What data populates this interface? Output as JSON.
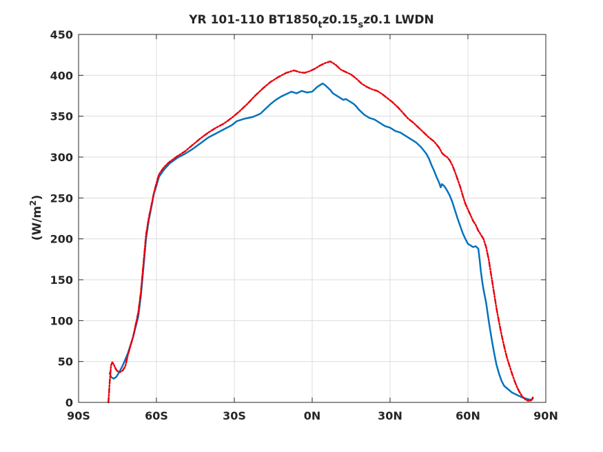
{
  "chart_data": {
    "type": "line",
    "title_parts": {
      "main": "YR 101-110 BT1850",
      "sub1": "t",
      "mid": "z0.15",
      "sub2": "s",
      "end": "z0.1 LWDN"
    },
    "ylabel_parts": {
      "main": "(W/m",
      "sup": "2",
      "end": ")"
    },
    "xlim": [
      -90,
      90
    ],
    "ylim": [
      0,
      450
    ],
    "xticks": [
      -90,
      -60,
      -30,
      0,
      30,
      60,
      90
    ],
    "xtick_labels": [
      "90S",
      "60S",
      "30S",
      "0N",
      "30N",
      "60N",
      "90N"
    ],
    "yticks": [
      0,
      50,
      100,
      150,
      200,
      250,
      300,
      350,
      400,
      450
    ],
    "ytick_labels": [
      "0",
      "50",
      "100",
      "150",
      "200",
      "250",
      "300",
      "350",
      "400",
      "450"
    ],
    "grid": true,
    "series": [
      {
        "color": "#0072bd",
        "style": "solid",
        "points": [
          [
            -78,
            36
          ],
          [
            -77.5,
            31
          ],
          [
            -76.5,
            29
          ],
          [
            -75.5,
            31
          ],
          [
            -74.5,
            36
          ],
          [
            -73,
            45
          ],
          [
            -71,
            60
          ],
          [
            -69,
            80
          ],
          [
            -67,
            105
          ],
          [
            -66,
            130
          ],
          [
            -65,
            165
          ],
          [
            -64,
            200
          ],
          [
            -63,
            222
          ],
          [
            -62,
            238
          ],
          [
            -61,
            255
          ],
          [
            -60,
            265
          ],
          [
            -59,
            276
          ],
          [
            -57,
            285
          ],
          [
            -55,
            292
          ],
          [
            -52,
            299
          ],
          [
            -49,
            304
          ],
          [
            -46,
            310
          ],
          [
            -43,
            317
          ],
          [
            -40,
            324
          ],
          [
            -37,
            329
          ],
          [
            -34,
            334
          ],
          [
            -31,
            339
          ],
          [
            -29,
            344
          ],
          [
            -26,
            347
          ],
          [
            -23,
            349
          ],
          [
            -20,
            353
          ],
          [
            -18,
            359
          ],
          [
            -16,
            365
          ],
          [
            -14,
            370
          ],
          [
            -12,
            374
          ],
          [
            -10,
            377
          ],
          [
            -8,
            380
          ],
          [
            -6,
            378
          ],
          [
            -4,
            381
          ],
          [
            -2,
            379
          ],
          [
            0,
            380
          ],
          [
            1,
            383
          ],
          [
            2,
            386
          ],
          [
            3,
            388
          ],
          [
            4,
            390
          ],
          [
            5,
            388
          ],
          [
            6,
            385
          ],
          [
            7,
            382
          ],
          [
            8,
            378
          ],
          [
            9,
            376
          ],
          [
            10,
            374
          ],
          [
            11,
            372
          ],
          [
            12,
            370
          ],
          [
            13,
            371
          ],
          [
            14,
            369
          ],
          [
            15,
            367
          ],
          [
            16,
            365
          ],
          [
            17,
            362
          ],
          [
            18,
            358
          ],
          [
            20,
            352
          ],
          [
            22,
            348
          ],
          [
            24,
            346
          ],
          [
            26,
            342
          ],
          [
            28,
            338
          ],
          [
            30,
            336
          ],
          [
            32,
            332
          ],
          [
            34,
            330
          ],
          [
            36,
            326
          ],
          [
            38,
            322
          ],
          [
            40,
            318
          ],
          [
            42,
            312
          ],
          [
            44,
            304
          ],
          [
            45,
            298
          ],
          [
            46,
            290
          ],
          [
            47,
            283
          ],
          [
            48,
            275
          ],
          [
            49,
            268
          ],
          [
            49.5,
            263
          ],
          [
            50,
            267
          ],
          [
            51,
            264
          ],
          [
            52,
            259
          ],
          [
            53,
            253
          ],
          [
            54,
            245
          ],
          [
            55,
            235
          ],
          [
            56,
            225
          ],
          [
            57,
            216
          ],
          [
            58,
            207
          ],
          [
            59,
            200
          ],
          [
            60,
            194
          ],
          [
            61,
            192
          ],
          [
            62,
            190
          ],
          [
            63,
            191
          ],
          [
            64,
            188
          ],
          [
            64.5,
            175
          ],
          [
            65,
            160
          ],
          [
            65.5,
            148
          ],
          [
            66,
            138
          ],
          [
            67,
            122
          ],
          [
            68,
            100
          ],
          [
            69,
            80
          ],
          [
            70,
            62
          ],
          [
            71,
            46
          ],
          [
            72,
            35
          ],
          [
            73,
            26
          ],
          [
            74,
            20
          ],
          [
            75.5,
            16
          ],
          [
            77,
            12
          ],
          [
            79,
            9
          ],
          [
            81,
            6
          ],
          [
            83,
            4
          ],
          [
            84.5,
            3
          ],
          [
            85,
            5
          ]
        ]
      },
      {
        "color": "#e8000b",
        "style": "dashdot",
        "points": [
          [
            -78.5,
            0
          ],
          [
            -78,
            25
          ],
          [
            -77.5,
            45
          ],
          [
            -77,
            49
          ],
          [
            -76.5,
            47
          ],
          [
            -76,
            43
          ],
          [
            -75.5,
            40
          ],
          [
            -75,
            38
          ],
          [
            -74,
            37
          ],
          [
            -73,
            39
          ],
          [
            -72,
            44
          ],
          [
            -71,
            58
          ],
          [
            -69,
            80
          ],
          [
            -67,
            110
          ],
          [
            -66,
            135
          ],
          [
            -65,
            170
          ],
          [
            -64,
            205
          ],
          [
            -63,
            225
          ],
          [
            -62,
            240
          ],
          [
            -61,
            256
          ],
          [
            -60,
            268
          ],
          [
            -59,
            279
          ],
          [
            -57,
            288
          ],
          [
            -55,
            294
          ],
          [
            -52,
            301
          ],
          [
            -49,
            307
          ],
          [
            -46,
            315
          ],
          [
            -43,
            323
          ],
          [
            -40,
            330
          ],
          [
            -37,
            336
          ],
          [
            -34,
            341
          ],
          [
            -31,
            348
          ],
          [
            -28,
            356
          ],
          [
            -25,
            365
          ],
          [
            -22,
            375
          ],
          [
            -19,
            384
          ],
          [
            -16,
            392
          ],
          [
            -13,
            398
          ],
          [
            -10,
            403
          ],
          [
            -7,
            406
          ],
          [
            -5,
            404
          ],
          [
            -3,
            403
          ],
          [
            -1,
            405
          ],
          [
            1,
            408
          ],
          [
            3,
            412
          ],
          [
            5,
            415
          ],
          [
            7,
            417
          ],
          [
            9,
            413
          ],
          [
            11,
            407
          ],
          [
            13,
            404
          ],
          [
            15,
            401
          ],
          [
            17,
            396
          ],
          [
            19,
            390
          ],
          [
            21,
            386
          ],
          [
            23,
            383
          ],
          [
            25,
            381
          ],
          [
            27,
            377
          ],
          [
            29,
            372
          ],
          [
            31,
            367
          ],
          [
            33,
            361
          ],
          [
            35,
            354
          ],
          [
            37,
            347
          ],
          [
            39,
            342
          ],
          [
            41,
            336
          ],
          [
            43,
            330
          ],
          [
            45,
            324
          ],
          [
            47,
            319
          ],
          [
            49,
            311
          ],
          [
            50,
            305
          ],
          [
            51,
            302
          ],
          [
            52,
            300
          ],
          [
            53,
            296
          ],
          [
            54,
            290
          ],
          [
            55,
            282
          ],
          [
            56,
            273
          ],
          [
            57,
            264
          ],
          [
            58,
            253
          ],
          [
            59,
            243
          ],
          [
            60,
            236
          ],
          [
            61,
            229
          ],
          [
            62,
            222
          ],
          [
            63,
            217
          ],
          [
            64,
            210
          ],
          [
            65,
            205
          ],
          [
            66,
            200
          ],
          [
            67,
            190
          ],
          [
            68,
            175
          ],
          [
            69,
            155
          ],
          [
            70,
            135
          ],
          [
            71,
            115
          ],
          [
            72,
            98
          ],
          [
            73,
            82
          ],
          [
            74,
            68
          ],
          [
            75,
            55
          ],
          [
            76,
            45
          ],
          [
            77,
            35
          ],
          [
            78,
            26
          ],
          [
            79,
            18
          ],
          [
            80,
            12
          ],
          [
            81,
            7
          ],
          [
            82,
            4
          ],
          [
            83,
            2
          ],
          [
            84,
            2
          ],
          [
            84.5,
            3
          ],
          [
            85,
            6
          ]
        ]
      }
    ]
  }
}
